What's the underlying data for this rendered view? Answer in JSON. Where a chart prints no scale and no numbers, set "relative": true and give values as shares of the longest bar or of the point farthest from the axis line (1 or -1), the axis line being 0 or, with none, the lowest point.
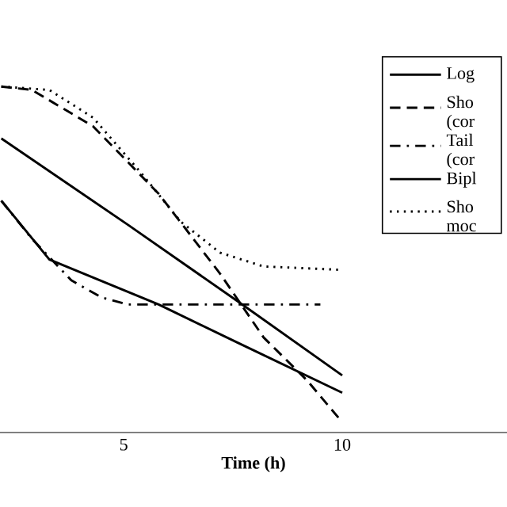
{
  "chart_data": {
    "type": "line",
    "relative": true,
    "xlabel": "Time (h)",
    "xlim": [
      2.17,
      13.77
    ],
    "xticks": [
      5,
      10
    ],
    "tick_labels": "x",
    "grid": false,
    "legend": "right",
    "marker": "none",
    "series": [
      {
        "name": "Log",
        "color": "#000000",
        "line_style": "solid",
        "x": [
          2.2,
          5.1,
          7.6,
          10
        ],
        "values": [
          0.85,
          0.6,
          0.38,
          0.165
        ]
      },
      {
        "name": "Sho (cor",
        "color": "#000000",
        "line_style": "dashed",
        "x": [
          2.2,
          2.9,
          4.3,
          5.8,
          7.2,
          8.2,
          9.2,
          10
        ],
        "values": [
          1.0,
          0.99,
          0.885,
          0.69,
          0.46,
          0.275,
          0.15,
          0.03
        ]
      },
      {
        "name": "Tail (cor",
        "color": "#000000",
        "line_style": "dashdot",
        "x": [
          2.2,
          2.9,
          3.8,
          4.5,
          5.1,
          9.5
        ],
        "values": [
          0.67,
          0.56,
          0.44,
          0.39,
          0.37,
          0.37
        ]
      },
      {
        "name": "Bipl",
        "color": "#000000",
        "line_style": "solid",
        "x": [
          2.2,
          3.3,
          5.8,
          7.6,
          10
        ],
        "values": [
          0.67,
          0.5,
          0.37,
          0.26,
          0.115
        ]
      },
      {
        "name": "Sho moc",
        "color": "#000000",
        "line_style": "dotted",
        "x": [
          2.2,
          3.3,
          4.3,
          5.4,
          6.3,
          7.2,
          8.2,
          10
        ],
        "values": [
          1.0,
          0.99,
          0.91,
          0.75,
          0.61,
          0.52,
          0.48,
          0.47
        ]
      }
    ]
  }
}
